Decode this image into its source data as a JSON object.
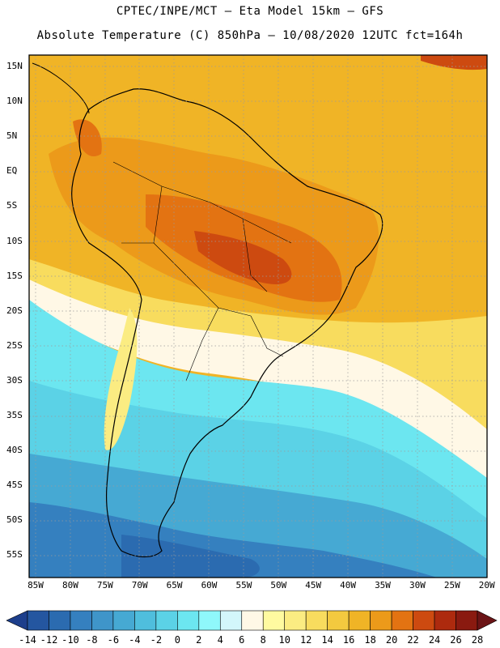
{
  "header": {
    "line1": "CPTEC/INPE/MCT –  Eta Model 15km – GFS",
    "line2": "Absolute Temperature (C) 850hPa – 10/08/2020 12UTC fct=164h"
  },
  "map": {
    "lat_labels": [
      "15N",
      "10N",
      "5N",
      "EQ",
      "5S",
      "10S",
      "15S",
      "20S",
      "25S",
      "30S",
      "35S",
      "40S",
      "45S",
      "50S",
      "55S"
    ],
    "lon_labels": [
      "85W",
      "80W",
      "75W",
      "70W",
      "65W",
      "60W",
      "55W",
      "50W",
      "45W",
      "40W",
      "35W",
      "30W",
      "25W",
      "20W"
    ]
  },
  "colorbar": {
    "labels": [
      "-14",
      "-12",
      "-10",
      "-8",
      "-6",
      "-4",
      "-2",
      "0",
      "2",
      "4",
      "6",
      "8",
      "10",
      "12",
      "14",
      "16",
      "18",
      "20",
      "22",
      "24",
      "26",
      "28"
    ],
    "colors": [
      "#1d3f8c",
      "#2456a0",
      "#2b6bb0",
      "#3580bf",
      "#3f95c9",
      "#46a9d3",
      "#4fbedd",
      "#5bd2e6",
      "#6ce6f0",
      "#8ff8fb",
      "#d3f6fb",
      "#fff8e6",
      "#fffaa0",
      "#fbec82",
      "#f8dc5e",
      "#f3c93f",
      "#f0b426",
      "#ec9a1a",
      "#e37312",
      "#cd4a10",
      "#ad2a0e",
      "#8a1a10",
      "#6b1416"
    ]
  }
}
